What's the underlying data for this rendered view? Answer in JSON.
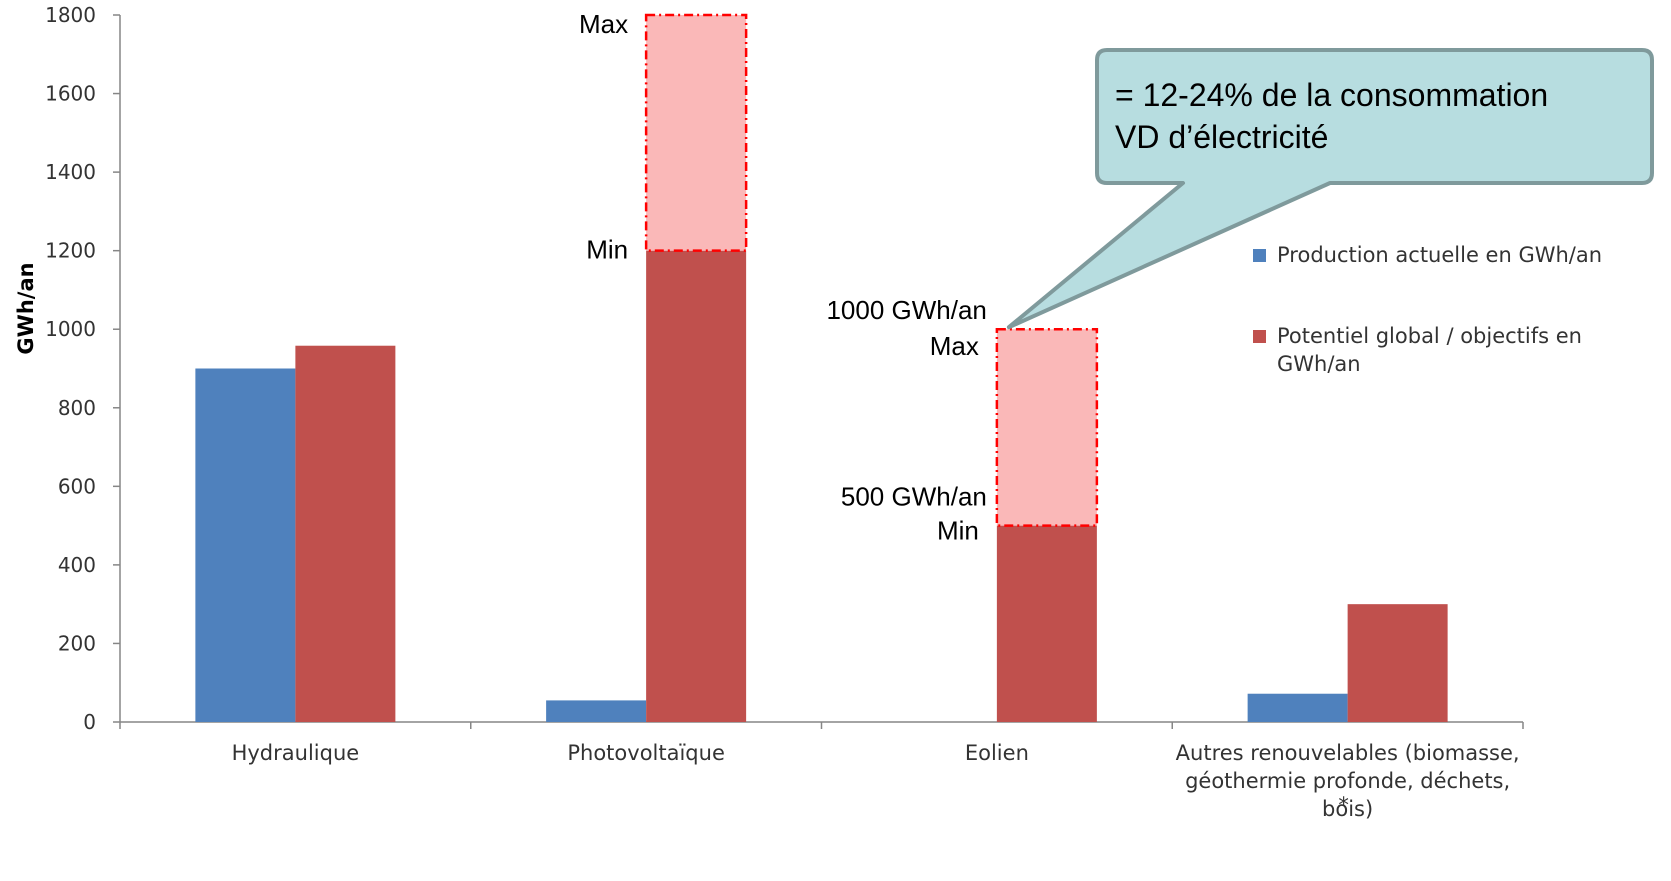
{
  "chart_data": {
    "type": "bar",
    "ylabel": "GWh/an",
    "ylim": [
      0,
      1800
    ],
    "yticks": [
      0,
      200,
      400,
      600,
      800,
      1000,
      1200,
      1400,
      1600,
      1800
    ],
    "categories": [
      [
        "Hydraulique"
      ],
      [
        "Photovoltaïque"
      ],
      [
        "Eolien"
      ],
      [
        "Autres renouvelables (biomasse,",
        "géothermie profonde, déchets,",
        "bois)"
      ]
    ],
    "category_footnote_mark": "*",
    "series": [
      {
        "name": "Production actuelle en GWh/an",
        "color": "#4f81bd",
        "values": [
          900,
          55,
          0,
          72
        ]
      },
      {
        "name": "Potentiel global / objectifs en GWh/an",
        "legend_lines": [
          "Potentiel global / objectifs en",
          "GWh/an"
        ],
        "color": "#c0504d",
        "values": [
          958,
          1200,
          500,
          300
        ]
      }
    ],
    "ranges": [
      {
        "category_index": 1,
        "min": 1200,
        "max": 1800,
        "color": "#fab8b8",
        "border": "#ff0000",
        "min_label": "Min",
        "max_label": "Max"
      },
      {
        "category_index": 2,
        "min": 500,
        "max": 1000,
        "color": "#fab8b8",
        "border": "#ff0000",
        "min_label": "Min",
        "max_label": "Max",
        "min_value_label": "500 GWh/an",
        "max_value_label": "1000 GWh/an"
      }
    ],
    "legend_position": "right",
    "grid": false,
    "callout": {
      "lines": [
        "= 12-24% de la consommation",
        "VD d’électricité"
      ],
      "fill": "#b7dde0",
      "border": "#7f9a9c"
    }
  }
}
